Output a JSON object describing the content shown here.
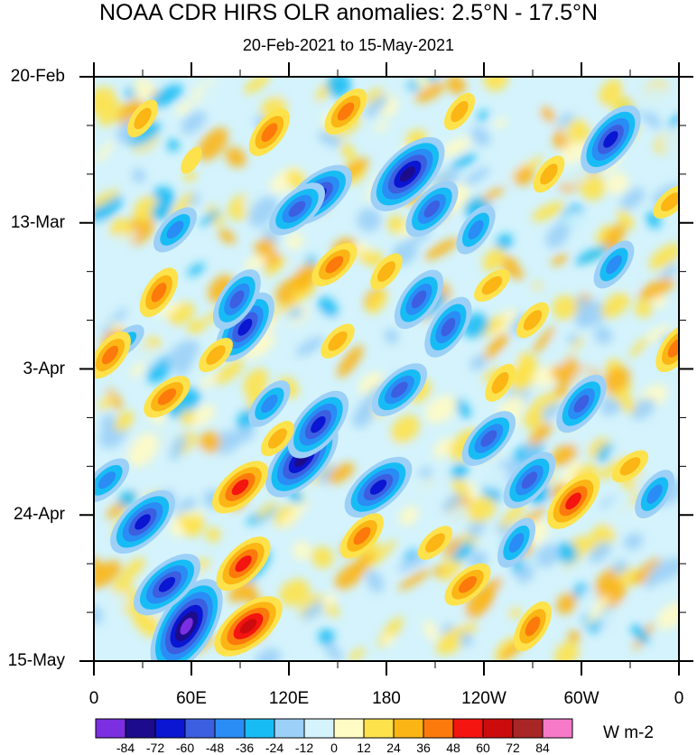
{
  "chart_data": {
    "type": "heatmap",
    "title": "NOAA CDR HIRS OLR anomalies: 2.5°N - 17.5°N",
    "subtitle": "20-Feb-2021 to 15-May-2021",
    "x_tick_labels": [
      "0",
      "60E",
      "120E",
      "180",
      "120W",
      "60W",
      "0"
    ],
    "x_ticks_deg": [
      0,
      60,
      120,
      180,
      240,
      300,
      360
    ],
    "xlim": [
      0,
      360
    ],
    "y_tick_labels": [
      "20-Feb",
      "13-Mar",
      "3-Apr",
      "24-Apr",
      "15-May"
    ],
    "y_ticks_day": [
      0,
      21,
      42,
      63,
      84
    ],
    "ylim_day": [
      0,
      84
    ],
    "colorbar": {
      "levels": [
        "-84",
        "-72",
        "-60",
        "-48",
        "-36",
        "-24",
        "-12",
        "0",
        "12",
        "24",
        "36",
        "48",
        "60",
        "72",
        "84"
      ],
      "colors": [
        "#7b2fe0",
        "#1c0c8c",
        "#0a16d2",
        "#3b5fe0",
        "#2a8cf5",
        "#18bcf5",
        "#9cd0f7",
        "#d4f3fc",
        "#fffbc4",
        "#fde24b",
        "#fbb514",
        "#fc7a0c",
        "#f41410",
        "#cc0c0c",
        "#a82626",
        "#f67ac8"
      ],
      "units": "W m-2"
    },
    "features": [
      {
        "lon": 57,
        "day": 79,
        "value": -86
      },
      {
        "lon": 45,
        "day": 73,
        "value": -70
      },
      {
        "lon": 30,
        "day": 64,
        "value": -60
      },
      {
        "lon": 128,
        "day": 55,
        "value": -82
      },
      {
        "lon": 138,
        "day": 50,
        "value": -60
      },
      {
        "lon": 93,
        "day": 36,
        "value": -66
      },
      {
        "lon": 88,
        "day": 32,
        "value": -48
      },
      {
        "lon": 138,
        "day": 17,
        "value": -66
      },
      {
        "lon": 125,
        "day": 19,
        "value": -48
      },
      {
        "lon": 193,
        "day": 14,
        "value": -76
      },
      {
        "lon": 208,
        "day": 19,
        "value": -48
      },
      {
        "lon": 318,
        "day": 9,
        "value": -70
      },
      {
        "lon": 200,
        "day": 32,
        "value": -48
      },
      {
        "lon": 218,
        "day": 36,
        "value": -50
      },
      {
        "lon": 175,
        "day": 59,
        "value": -66
      },
      {
        "lon": 188,
        "day": 45,
        "value": -50
      },
      {
        "lon": 243,
        "day": 52,
        "value": -48
      },
      {
        "lon": 268,
        "day": 58,
        "value": -50
      },
      {
        "lon": 300,
        "day": 47,
        "value": -52
      },
      {
        "lon": 345,
        "day": 60,
        "value": -40
      },
      {
        "lon": 260,
        "day": 67,
        "value": -40
      },
      {
        "lon": 20,
        "day": 38,
        "value": -30
      },
      {
        "lon": 8,
        "day": 58,
        "value": -36
      },
      {
        "lon": 50,
        "day": 22,
        "value": -36
      },
      {
        "lon": 108,
        "day": 47,
        "value": -36
      },
      {
        "lon": 320,
        "day": 27,
        "value": -40
      },
      {
        "lon": 235,
        "day": 22,
        "value": -36
      },
      {
        "lon": 95,
        "day": 79,
        "value": 64
      },
      {
        "lon": 90,
        "day": 59,
        "value": 50
      },
      {
        "lon": 92,
        "day": 70,
        "value": 52
      },
      {
        "lon": 295,
        "day": 61,
        "value": 56
      },
      {
        "lon": 10,
        "day": 40,
        "value": 46
      },
      {
        "lon": 358,
        "day": 39,
        "value": 44
      },
      {
        "lon": 40,
        "day": 31,
        "value": 40
      },
      {
        "lon": 45,
        "day": 46,
        "value": 36
      },
      {
        "lon": 148,
        "day": 27,
        "value": 36
      },
      {
        "lon": 150,
        "day": 38,
        "value": 30
      },
      {
        "lon": 155,
        "day": 5,
        "value": 36
      },
      {
        "lon": 108,
        "day": 8,
        "value": 38
      },
      {
        "lon": 30,
        "day": 6,
        "value": 30
      },
      {
        "lon": 270,
        "day": 79,
        "value": 46
      },
      {
        "lon": 230,
        "day": 73,
        "value": 36
      },
      {
        "lon": 210,
        "day": 67,
        "value": 32
      },
      {
        "lon": 165,
        "day": 66,
        "value": 36
      },
      {
        "lon": 270,
        "day": 35,
        "value": 30
      },
      {
        "lon": 280,
        "day": 14,
        "value": 30
      },
      {
        "lon": 250,
        "day": 44,
        "value": 30
      },
      {
        "lon": 330,
        "day": 56,
        "value": 30
      },
      {
        "lon": 355,
        "day": 18,
        "value": 26
      },
      {
        "lon": 75,
        "day": 40,
        "value": 34
      },
      {
        "lon": 113,
        "day": 52,
        "value": 30
      },
      {
        "lon": 180,
        "day": 28,
        "value": 28
      },
      {
        "lon": 225,
        "day": 5,
        "value": 26
      },
      {
        "lon": 60,
        "day": 12,
        "value": 22
      },
      {
        "lon": 245,
        "day": 30,
        "value": 26
      }
    ]
  }
}
